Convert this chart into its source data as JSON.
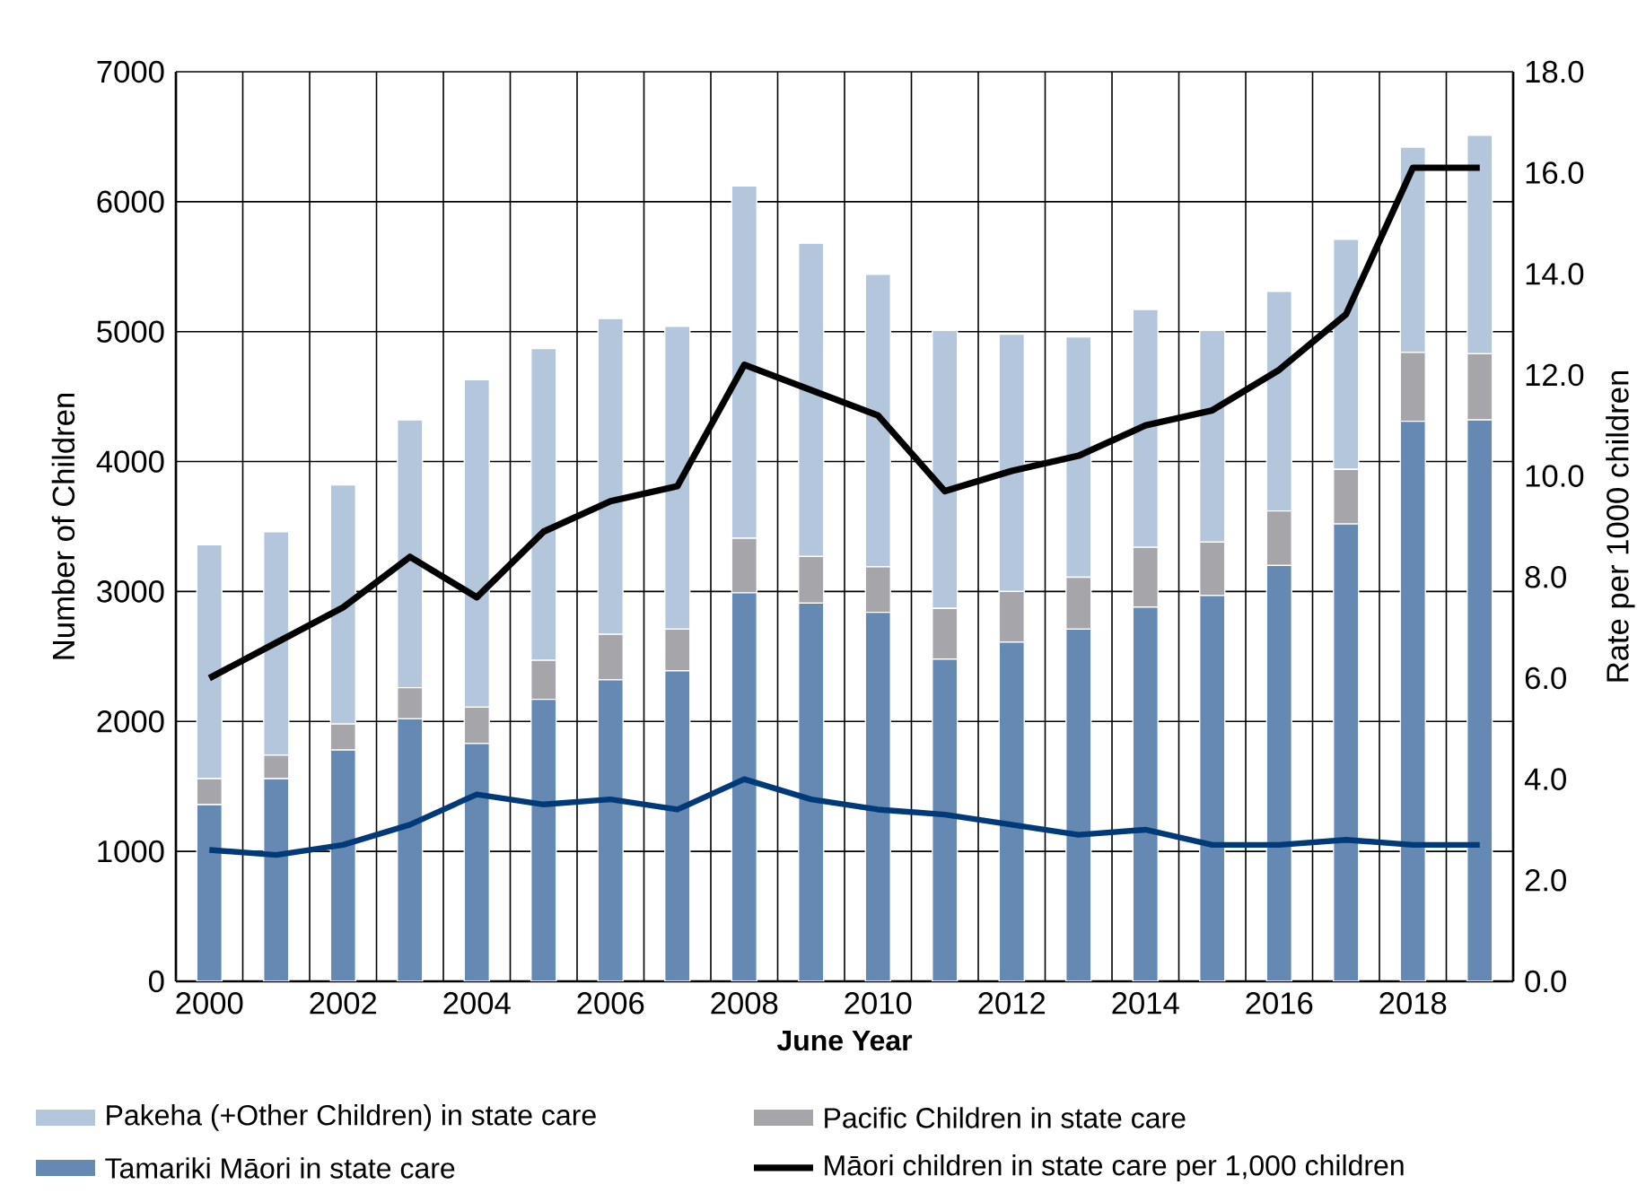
{
  "chart_data": {
    "type": "bar",
    "stacked": true,
    "xlabel": "June Year",
    "ylabel": "Number of Children",
    "y2label": "Rate per 1000 children",
    "x": [
      2000,
      2001,
      2002,
      2003,
      2004,
      2005,
      2006,
      2007,
      2008,
      2009,
      2010,
      2011,
      2012,
      2013,
      2014,
      2015,
      2016,
      2017,
      2018,
      2019
    ],
    "xlim": [
      1999.5,
      2019.5
    ],
    "xticks": [
      2000,
      2002,
      2004,
      2006,
      2008,
      2010,
      2012,
      2014,
      2016,
      2018
    ],
    "ylim": [
      0,
      7000
    ],
    "yticks": [
      0,
      1000,
      2000,
      3000,
      4000,
      5000,
      6000,
      7000
    ],
    "y2lim": [
      0,
      18
    ],
    "y2ticks": [
      {
        "value": 0,
        "label": "0.0"
      },
      {
        "value": 2,
        "label": "2.0"
      },
      {
        "value": 4,
        "label": "4.0"
      },
      {
        "value": 6,
        "label": "6.0"
      },
      {
        "value": 8,
        "label": "8.0"
      },
      {
        "value": 10,
        "label": "10.0"
      },
      {
        "value": 12,
        "label": "12.0"
      },
      {
        "value": 14,
        "label": "14.0"
      },
      {
        "value": 16,
        "label": "16.0"
      },
      {
        "value": 18,
        "label": "18.0"
      }
    ],
    "grid": true,
    "legend": "bottom",
    "series": [
      {
        "name": "Tamariki Māori in state care",
        "color": "#6589b3",
        "values": [
          1360,
          1560,
          1780,
          2020,
          1830,
          2170,
          2320,
          2390,
          2990,
          2910,
          2840,
          2480,
          2610,
          2710,
          2880,
          2970,
          3200,
          3520,
          4310,
          4320
        ]
      },
      {
        "name": "Pacific Children in state care",
        "color": "#a6a6aa",
        "values": [
          200,
          180,
          200,
          240,
          280,
          300,
          350,
          320,
          420,
          360,
          350,
          390,
          390,
          400,
          460,
          410,
          420,
          420,
          530,
          510
        ]
      },
      {
        "name": "Pakeha (+Other Children) in state care",
        "color": "#b3c6dc",
        "values": [
          1800,
          1720,
          1840,
          2060,
          2520,
          2400,
          2430,
          2330,
          2710,
          2410,
          2250,
          2140,
          1980,
          1850,
          1830,
          1630,
          1690,
          1770,
          1580,
          1680
        ]
      },
      {
        "name": "Māori children in state care per 1,000 children",
        "type": "line",
        "axis": "y2",
        "color": "#000000",
        "values": [
          6.0,
          6.7,
          7.4,
          8.4,
          7.6,
          8.9,
          9.5,
          9.8,
          12.2,
          11.7,
          11.2,
          9.7,
          10.1,
          10.4,
          11.0,
          11.3,
          12.1,
          13.2,
          16.1,
          16.1
        ]
      },
      {
        "type": "line",
        "axis": "y2",
        "color": "#003a78",
        "values": [
          2.6,
          2.5,
          2.7,
          3.1,
          3.7,
          3.5,
          3.6,
          3.4,
          4.0,
          3.6,
          3.4,
          3.3,
          3.1,
          2.9,
          3.0,
          2.7,
          2.7,
          2.8,
          2.7,
          2.7
        ]
      }
    ]
  }
}
